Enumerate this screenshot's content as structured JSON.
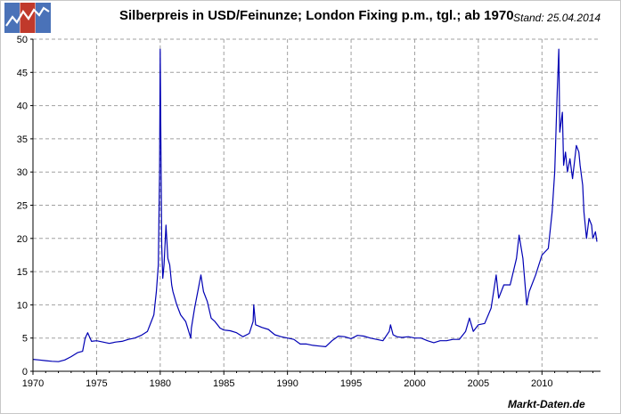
{
  "header": {
    "title": "Silberpreis in USD/Feinunze; London Fixing p.m., tgl.; ab 1970",
    "stand": "Stand: 25.04.2014"
  },
  "footer": {
    "source": "Markt-Daten.de"
  },
  "logo": {
    "icon": "rising-chart-logo-icon",
    "colors": [
      "#4a72b8",
      "#c0392b",
      "#4a72b8"
    ]
  },
  "colors": {
    "line": "#0000b4",
    "grid": "#a0a0a0",
    "axis": "#000000"
  },
  "chart_data": {
    "type": "line",
    "title": "Silberpreis in USD/Feinunze; London Fixing p.m., tgl.; ab 1970",
    "xlabel": "",
    "ylabel": "",
    "xlim": [
      1970,
      2014.6
    ],
    "ylim": [
      0,
      50
    ],
    "x_ticks": [
      1970,
      1975,
      1980,
      1985,
      1990,
      1995,
      2000,
      2005,
      2010
    ],
    "y_ticks": [
      0,
      5,
      10,
      15,
      20,
      25,
      30,
      35,
      40,
      45,
      50
    ],
    "grid": true,
    "legend": "none",
    "series": [
      {
        "x": [
          1970.0,
          1970.5,
          1971.0,
          1971.5,
          1972.0,
          1972.5,
          1973.0,
          1973.5,
          1973.9,
          1974.1,
          1974.3,
          1974.6,
          1975.0,
          1975.5,
          1976.0,
          1976.5,
          1977.0,
          1977.5,
          1978.0,
          1978.5,
          1979.0,
          1979.3,
          1979.5,
          1979.7,
          1979.85,
          1979.95,
          1980.0,
          1980.05,
          1980.12,
          1980.2,
          1980.3,
          1980.45,
          1980.6,
          1980.75,
          1980.9,
          1981.0,
          1981.3,
          1981.6,
          1982.0,
          1982.4,
          1982.45,
          1982.7,
          1983.0,
          1983.2,
          1983.4,
          1983.7,
          1984.0,
          1984.3,
          1984.7,
          1985.0,
          1985.5,
          1986.0,
          1986.5,
          1987.0,
          1987.3,
          1987.35,
          1987.5,
          1988.0,
          1988.5,
          1989.0,
          1989.5,
          1990.0,
          1990.5,
          1991.0,
          1991.5,
          1992.0,
          1992.5,
          1993.0,
          1993.5,
          1994.0,
          1994.5,
          1995.0,
          1995.5,
          1996.0,
          1996.5,
          1997.0,
          1997.5,
          1998.0,
          1998.1,
          1998.3,
          1998.6,
          1999.0,
          1999.5,
          2000.0,
          2000.5,
          2001.0,
          2001.5,
          2002.0,
          2002.5,
          2003.0,
          2003.5,
          2004.0,
          2004.3,
          2004.6,
          2005.0,
          2005.5,
          2006.0,
          2006.4,
          2006.6,
          2007.0,
          2007.5,
          2008.0,
          2008.2,
          2008.5,
          2008.8,
          2009.0,
          2009.5,
          2010.0,
          2010.5,
          2010.8,
          2011.0,
          2011.2,
          2011.32,
          2011.4,
          2011.6,
          2011.7,
          2011.85,
          2012.0,
          2012.2,
          2012.4,
          2012.7,
          2012.9,
          2013.0,
          2013.2,
          2013.3,
          2013.5,
          2013.7,
          2013.9,
          2014.0,
          2014.2,
          2014.32
        ],
        "values": [
          1.8,
          1.7,
          1.6,
          1.5,
          1.45,
          1.7,
          2.2,
          2.8,
          3.0,
          5.0,
          5.8,
          4.5,
          4.6,
          4.4,
          4.2,
          4.4,
          4.5,
          4.8,
          5.0,
          5.4,
          6.0,
          7.5,
          8.5,
          12.0,
          16.0,
          30.0,
          48.5,
          36.0,
          19.0,
          14.0,
          16.0,
          22.0,
          17.0,
          16.0,
          13.0,
          12.0,
          10.0,
          8.5,
          7.5,
          5.0,
          6.5,
          9.5,
          12.5,
          14.5,
          12.0,
          10.5,
          8.0,
          7.5,
          6.5,
          6.2,
          6.1,
          5.8,
          5.2,
          5.7,
          7.5,
          10.0,
          7.0,
          6.6,
          6.3,
          5.5,
          5.2,
          5.0,
          4.8,
          4.1,
          4.1,
          3.9,
          3.8,
          3.7,
          4.6,
          5.3,
          5.2,
          4.9,
          5.4,
          5.3,
          5.0,
          4.8,
          4.6,
          6.0,
          7.0,
          5.5,
          5.2,
          5.1,
          5.2,
          5.0,
          5.0,
          4.6,
          4.3,
          4.6,
          4.6,
          4.8,
          4.8,
          6.0,
          8.0,
          6.0,
          7.0,
          7.2,
          9.5,
          14.5,
          11.0,
          13.0,
          13.0,
          17.0,
          20.5,
          17.0,
          10.0,
          12.0,
          14.5,
          17.5,
          18.5,
          24.0,
          30.0,
          42.0,
          48.5,
          36.0,
          39.0,
          31.0,
          33.0,
          30.0,
          32.0,
          29.0,
          34.0,
          33.0,
          31.0,
          28.0,
          24.0,
          20.0,
          23.0,
          22.0,
          20.0,
          21.0,
          19.5
        ]
      }
    ]
  }
}
